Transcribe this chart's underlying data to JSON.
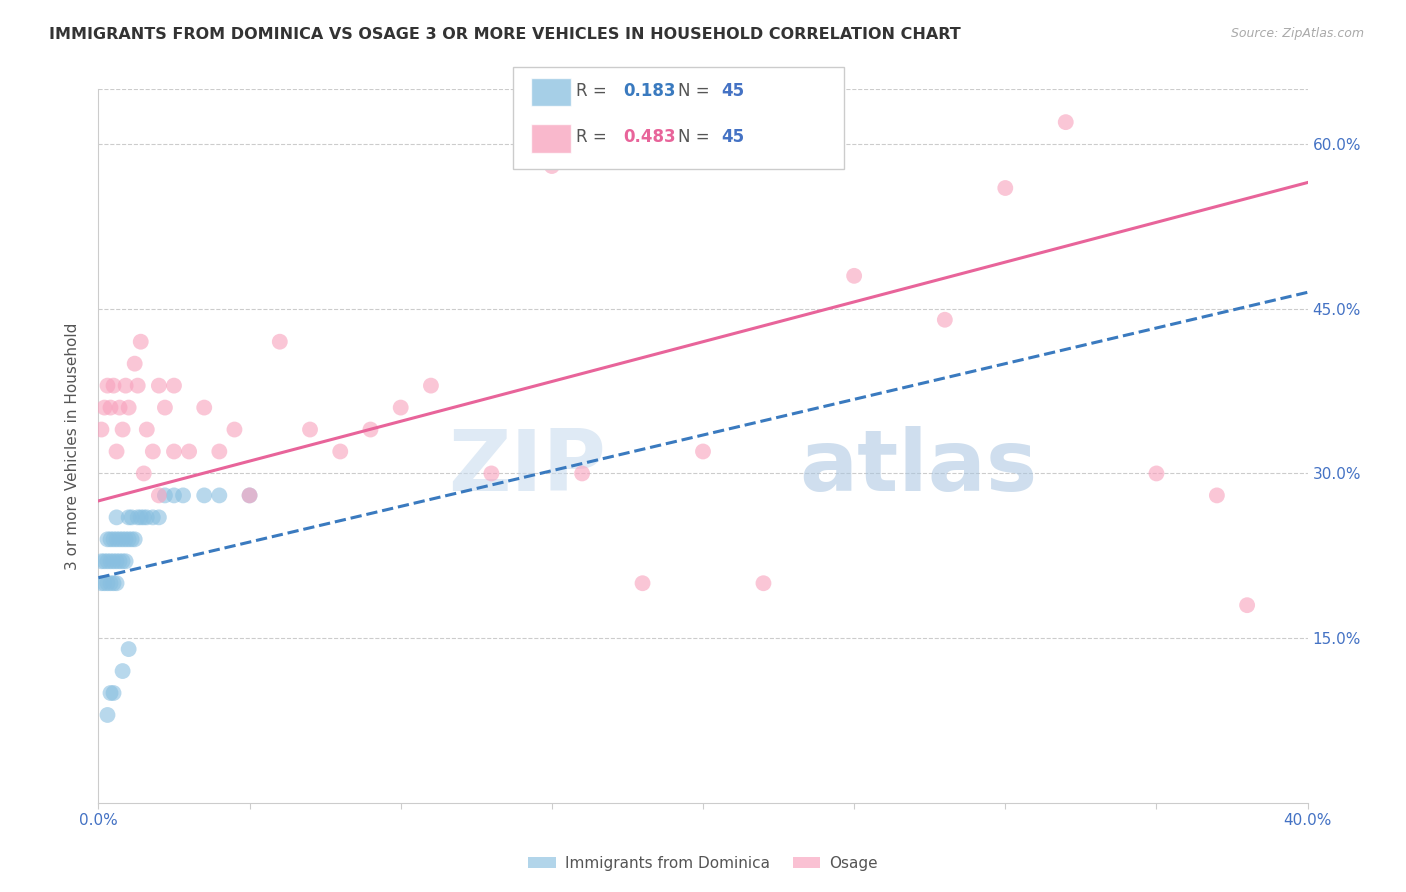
{
  "title": "IMMIGRANTS FROM DOMINICA VS OSAGE 3 OR MORE VEHICLES IN HOUSEHOLD CORRELATION CHART",
  "source": "Source: ZipAtlas.com",
  "ylabel": "3 or more Vehicles in Household",
  "series1_name": "Immigrants from Dominica",
  "series2_name": "Osage",
  "series1_color": "#89bfe0",
  "series2_color": "#f8a0bc",
  "series1_line_color": "#3a7abf",
  "series2_line_color": "#e8649a",
  "r1": "0.183",
  "r2": "0.483",
  "n1": "45",
  "n2": "45",
  "watermark_zip": "ZIP",
  "watermark_atlas": "atlas",
  "xmin": 0.0,
  "xmax": 0.4,
  "ymin": 0.0,
  "ymax": 0.65,
  "right_ytick_vals": [
    0.15,
    0.3,
    0.45,
    0.6
  ],
  "right_ytick_labels": [
    "15.0%",
    "30.0%",
    "45.0%",
    "60.0%"
  ],
  "s1_x": [
    0.001,
    0.001,
    0.002,
    0.002,
    0.003,
    0.003,
    0.003,
    0.004,
    0.004,
    0.004,
    0.005,
    0.005,
    0.005,
    0.006,
    0.006,
    0.006,
    0.006,
    0.007,
    0.007,
    0.008,
    0.008,
    0.009,
    0.009,
    0.01,
    0.01,
    0.011,
    0.011,
    0.012,
    0.013,
    0.014,
    0.015,
    0.016,
    0.018,
    0.02,
    0.022,
    0.025,
    0.028,
    0.035,
    0.04,
    0.05,
    0.003,
    0.004,
    0.005,
    0.008,
    0.01
  ],
  "s1_y": [
    0.2,
    0.22,
    0.2,
    0.22,
    0.2,
    0.22,
    0.24,
    0.2,
    0.22,
    0.24,
    0.2,
    0.22,
    0.24,
    0.2,
    0.22,
    0.24,
    0.26,
    0.22,
    0.24,
    0.22,
    0.24,
    0.22,
    0.24,
    0.24,
    0.26,
    0.24,
    0.26,
    0.24,
    0.26,
    0.26,
    0.26,
    0.26,
    0.26,
    0.26,
    0.28,
    0.28,
    0.28,
    0.28,
    0.28,
    0.28,
    0.08,
    0.1,
    0.1,
    0.12,
    0.14
  ],
  "s2_x": [
    0.001,
    0.002,
    0.003,
    0.004,
    0.005,
    0.006,
    0.007,
    0.008,
    0.009,
    0.01,
    0.012,
    0.013,
    0.014,
    0.015,
    0.016,
    0.018,
    0.02,
    0.022,
    0.025,
    0.03,
    0.035,
    0.04,
    0.045,
    0.05,
    0.06,
    0.07,
    0.08,
    0.09,
    0.1,
    0.11,
    0.13,
    0.15,
    0.16,
    0.18,
    0.2,
    0.22,
    0.25,
    0.28,
    0.3,
    0.32,
    0.35,
    0.37,
    0.38,
    0.02,
    0.025
  ],
  "s2_y": [
    0.34,
    0.36,
    0.38,
    0.36,
    0.38,
    0.32,
    0.36,
    0.34,
    0.38,
    0.36,
    0.4,
    0.38,
    0.42,
    0.3,
    0.34,
    0.32,
    0.38,
    0.36,
    0.38,
    0.32,
    0.36,
    0.32,
    0.34,
    0.28,
    0.42,
    0.34,
    0.32,
    0.34,
    0.36,
    0.38,
    0.3,
    0.58,
    0.3,
    0.2,
    0.32,
    0.2,
    0.48,
    0.44,
    0.56,
    0.62,
    0.3,
    0.28,
    0.18,
    0.28,
    0.32
  ],
  "s1_trend": [
    0.205,
    0.465
  ],
  "s2_trend": [
    0.275,
    0.565
  ]
}
